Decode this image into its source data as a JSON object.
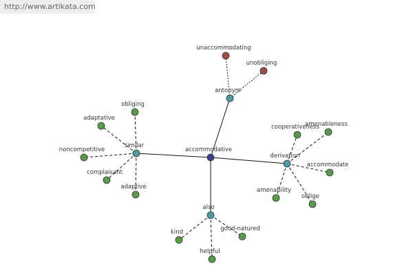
{
  "url": "http://www.artikata.com",
  "nodes": [
    {
      "label": "accommodative"
    },
    {
      "label": "antonym"
    },
    {
      "label": "unaccommodating"
    },
    {
      "label": "unobliging"
    },
    {
      "label": "similar"
    },
    {
      "label": "obliging"
    },
    {
      "label": "adaptative"
    },
    {
      "label": "noncompetitive"
    },
    {
      "label": "complaisant"
    },
    {
      "label": "adaptive"
    },
    {
      "label": "derivation"
    },
    {
      "label": "cooperativeness"
    },
    {
      "label": "amenableness"
    },
    {
      "label": "accommodate"
    },
    {
      "label": "amenability"
    },
    {
      "label": "oblige"
    },
    {
      "label": "also"
    },
    {
      "label": "kind"
    },
    {
      "label": "good-natured"
    },
    {
      "label": "helpful"
    }
  ]
}
